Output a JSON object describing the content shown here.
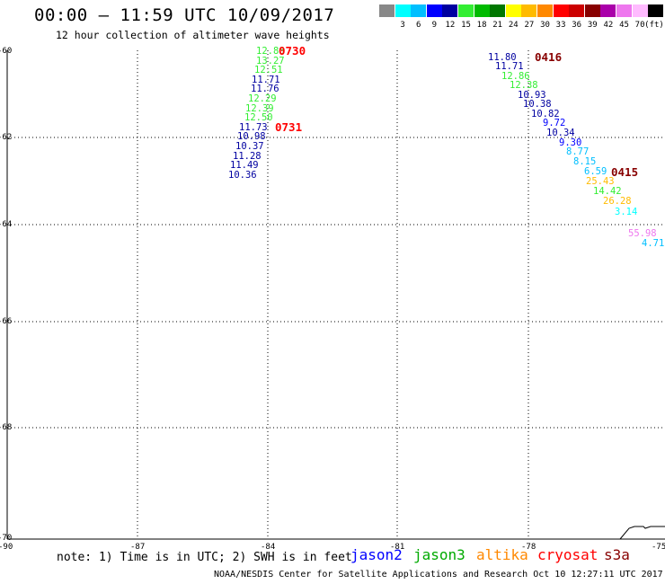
{
  "header": {
    "title": "00:00 – 11:59 UTC 10/09/2017",
    "subtitle": "12 hour collection of altimeter wave heights"
  },
  "legend": {
    "unit": "(ft)",
    "items": [
      {
        "color": "#888888",
        "label": ""
      },
      {
        "color": "#00ffff",
        "label": "3"
      },
      {
        "color": "#00bfff",
        "label": "6"
      },
      {
        "color": "#0000ff",
        "label": "9"
      },
      {
        "color": "#0000a0",
        "label": "12"
      },
      {
        "color": "#33ee33",
        "label": "15"
      },
      {
        "color": "#00bb00",
        "label": "18"
      },
      {
        "color": "#007700",
        "label": "21"
      },
      {
        "color": "#ffff00",
        "label": "24"
      },
      {
        "color": "#ffbb00",
        "label": "27"
      },
      {
        "color": "#ff8800",
        "label": "30"
      },
      {
        "color": "#ff0000",
        "label": "33"
      },
      {
        "color": "#cc0000",
        "label": "36"
      },
      {
        "color": "#880000",
        "label": "39"
      },
      {
        "color": "#aa00aa",
        "label": "42"
      },
      {
        "color": "#ee77ee",
        "label": "45"
      },
      {
        "color": "#ffbbff",
        "label": "70"
      },
      {
        "color": "#000000",
        "label": ""
      }
    ]
  },
  "axes": {
    "lat_labels": [
      "-60",
      "-62",
      "-64",
      "-66",
      "-68",
      "-70"
    ],
    "lon_labels": [
      "-90",
      "-87",
      "-84",
      "-81",
      "-78",
      "-75"
    ]
  },
  "passes": [
    {
      "label": "0730",
      "color": "#ff0000"
    },
    {
      "label": "0731",
      "color": "#ff0000"
    },
    {
      "label": "0416",
      "color": "#880000"
    },
    {
      "label": "0415",
      "color": "#880000"
    }
  ],
  "track1": [
    {
      "v": "12.86",
      "c": "#33ee33"
    },
    {
      "v": "13.27",
      "c": "#33ee33"
    },
    {
      "v": "12.51",
      "c": "#33ee33"
    },
    {
      "v": "11.71",
      "c": "#0000a0"
    },
    {
      "v": "11.76",
      "c": "#0000a0"
    },
    {
      "v": "12.29",
      "c": "#33ee33"
    },
    {
      "v": "12.39",
      "c": "#33ee33"
    },
    {
      "v": "12.50",
      "c": "#33ee33"
    },
    {
      "v": "11.73",
      "c": "#0000a0"
    },
    {
      "v": "10.98",
      "c": "#0000a0"
    },
    {
      "v": "10.37",
      "c": "#0000a0"
    },
    {
      "v": "11.28",
      "c": "#0000a0"
    },
    {
      "v": "11.49",
      "c": "#0000a0"
    },
    {
      "v": "10.36",
      "c": "#0000a0"
    }
  ],
  "track2": [
    {
      "v": "11.80",
      "c": "#0000a0"
    },
    {
      "v": "11.71",
      "c": "#0000a0"
    },
    {
      "v": "12.86",
      "c": "#33ee33"
    },
    {
      "v": "12.38",
      "c": "#33ee33"
    },
    {
      "v": "10.93",
      "c": "#0000a0"
    },
    {
      "v": "10.38",
      "c": "#0000a0"
    },
    {
      "v": "10.82",
      "c": "#0000a0"
    },
    {
      "v": "9.72",
      "c": "#0000ff"
    },
    {
      "v": "10.34",
      "c": "#0000a0"
    },
    {
      "v": "9.30",
      "c": "#0000ff"
    },
    {
      "v": "8.77",
      "c": "#00bfff"
    },
    {
      "v": "8.15",
      "c": "#00bfff"
    },
    {
      "v": "6.59",
      "c": "#00bfff"
    },
    {
      "v": "25.43",
      "c": "#ffbb00"
    },
    {
      "v": "14.42",
      "c": "#33ee33"
    },
    {
      "v": "26.28",
      "c": "#ffbb00"
    },
    {
      "v": "3.14",
      "c": "#00ffff"
    },
    {
      "v": "55.98",
      "c": "#ee77ee"
    },
    {
      "v": "4.71",
      "c": "#00bfff"
    }
  ],
  "footer": {
    "note": "note: 1) Time is in UTC; 2) SWH is in feet",
    "satellites": [
      {
        "name": "jason2",
        "color": "#0000ff"
      },
      {
        "name": "jason3",
        "color": "#00aa00"
      },
      {
        "name": "altika",
        "color": "#ff8800"
      },
      {
        "name": "cryosat",
        "color": "#ff0000"
      },
      {
        "name": "s3a",
        "color": "#880000"
      }
    ],
    "credit": "NOAA/NESDIS Center for Satellite Applications and Research     Oct 10 12:27:11 UTC 2017"
  }
}
